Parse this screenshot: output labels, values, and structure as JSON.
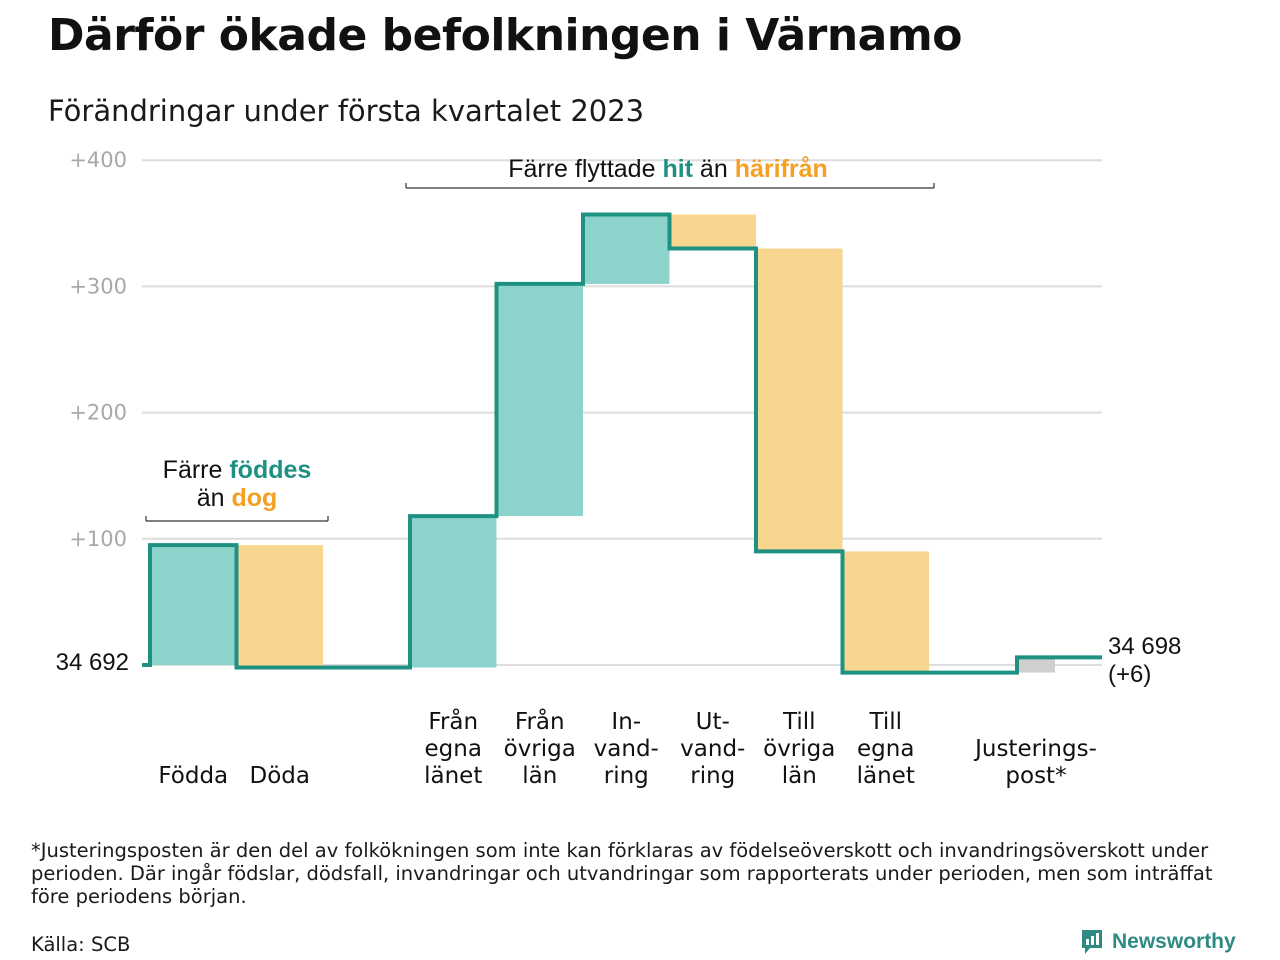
{
  "title": "Därför ökade befolkningen i Värnamo",
  "subtitle": "Förändringar under första kvartalet 2023",
  "colors": {
    "inflow": "#8cd4cb",
    "outflow": "#f9d68f",
    "adjustment": "#cfcfcf",
    "line": "#1e9183",
    "accent_teal": "#1e9183",
    "accent_orange": "#f5a024",
    "grid": "#dddddd",
    "tick": "#a8a8a8"
  },
  "chart_data": {
    "type": "waterfall",
    "start_value": 34692,
    "start_label": "34 692",
    "end_label": "34 698",
    "end_change_label": "(+6)",
    "y_ticks": [
      {
        "value": 100,
        "label": "+100"
      },
      {
        "value": 200,
        "label": "+200"
      },
      {
        "value": 300,
        "label": "+300"
      },
      {
        "value": 400,
        "label": "+400"
      }
    ],
    "ylim": [
      -10,
      410
    ],
    "grid": true,
    "steps": [
      {
        "label": [
          "Födda"
        ],
        "change": 95,
        "kind": "inflow"
      },
      {
        "label": [
          "Döda"
        ],
        "change": -97,
        "kind": "outflow"
      },
      {
        "label": [
          "Från",
          "egna",
          "länet"
        ],
        "change": 120,
        "kind": "inflow"
      },
      {
        "label": [
          "Från",
          "övriga",
          "län"
        ],
        "change": 184,
        "kind": "inflow"
      },
      {
        "label": [
          "In-",
          "vand-",
          "ring"
        ],
        "change": 55,
        "kind": "inflow"
      },
      {
        "label": [
          "Ut-",
          "vand-",
          "ring"
        ],
        "change": -27,
        "kind": "outflow"
      },
      {
        "label": [
          "Till",
          "övriga",
          "län"
        ],
        "change": -240,
        "kind": "outflow"
      },
      {
        "label": [
          "Till",
          "egna",
          "länet"
        ],
        "change": -96,
        "kind": "outflow"
      },
      {
        "label": [
          "Justerings-",
          "post*"
        ],
        "change": 12,
        "kind": "adjustment"
      }
    ],
    "annotations": [
      {
        "parts": [
          {
            "text": "Färre ",
            "color": "default"
          },
          {
            "text": "föddes",
            "color": "teal"
          },
          {
            "text": "än ",
            "color": "default",
            "newline": true
          },
          {
            "text": "dog",
            "color": "orange"
          }
        ]
      },
      {
        "parts": [
          {
            "text": "Färre flyttade ",
            "color": "default"
          },
          {
            "text": "hit",
            "color": "teal"
          },
          {
            "text": " än ",
            "color": "default"
          },
          {
            "text": "härifrån",
            "color": "orange"
          }
        ]
      }
    ]
  },
  "footnote": "*Justeringsposten är den del av folkökningen som inte kan förklaras av födelseöverskott och invandringsöverskott under perioden. Där ingår födslar, dödsfall, invandringar och utvandringar som rapporterats under perioden, men som inträffat före periodens början.",
  "source": "Källa: SCB",
  "brand": "Newsworthy"
}
